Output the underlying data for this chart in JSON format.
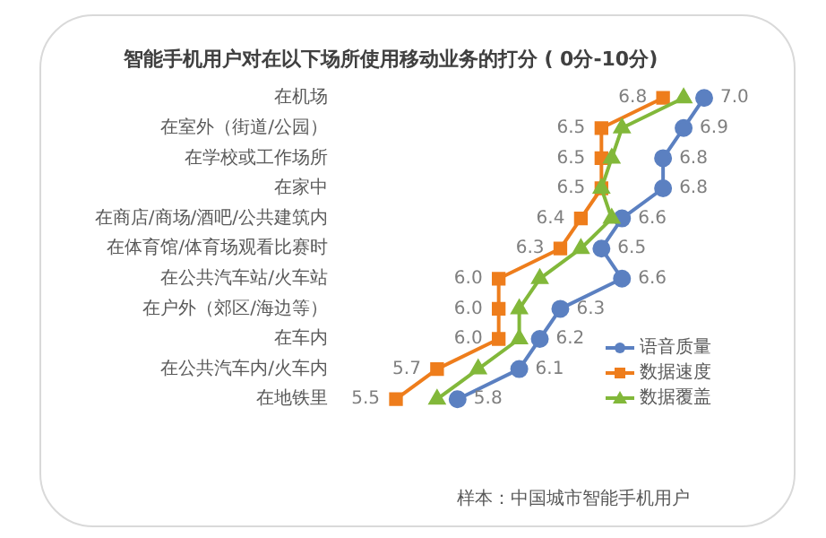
{
  "chart_data": {
    "type": "line",
    "orientation": "horizontal",
    "title": "智能手机用户对在以下场所使用移动业务的打分 ( 0分-10分)",
    "categories": [
      "在机场",
      "在室外（街道/公园）",
      "在学校或工作场所",
      "在家中",
      "在商店/商场/酒吧/公共建筑内",
      "在体育馆/体育场观看比赛时",
      "在公共汽车站/火车站",
      "在户外（郊区/海边等）",
      "在车内",
      "在公共汽车内/火车内",
      "在地铁里"
    ],
    "tick_labels": "y",
    "grid": false,
    "legend": "bottom right",
    "series": [
      {
        "name": "语音质量",
        "color": "#5b80c1",
        "marker": "circle",
        "values": [
          7.0,
          6.9,
          6.8,
          6.8,
          6.6,
          6.5,
          6.6,
          6.3,
          6.2,
          6.1,
          5.8
        ],
        "value_labels": [
          "7.0",
          "6.9",
          "6.8",
          "6.8",
          "6.6",
          "6.5",
          "6.6",
          "6.3",
          "6.2",
          "6.1",
          "5.8"
        ]
      },
      {
        "name": "数据速度",
        "color": "#ee7d1c",
        "marker": "square",
        "values": [
          6.8,
          6.5,
          6.5,
          6.5,
          6.4,
          6.3,
          6.0,
          6.0,
          6.0,
          5.7,
          5.5
        ],
        "value_labels": [
          "6.8",
          "6.5",
          "6.5",
          "6.5",
          "6.4",
          "6.3",
          "6.0",
          "6.0",
          "6.0",
          "5.7",
          "5.5"
        ]
      },
      {
        "name": "数据覆盖",
        "color": "#82b83a",
        "marker": "triangle",
        "values": [
          6.9,
          6.6,
          6.55,
          6.5,
          6.55,
          6.4,
          6.2,
          6.1,
          6.1,
          5.9,
          5.7
        ]
      }
    ],
    "annotations": [
      "样本：中国城市智能手机用户"
    ]
  }
}
